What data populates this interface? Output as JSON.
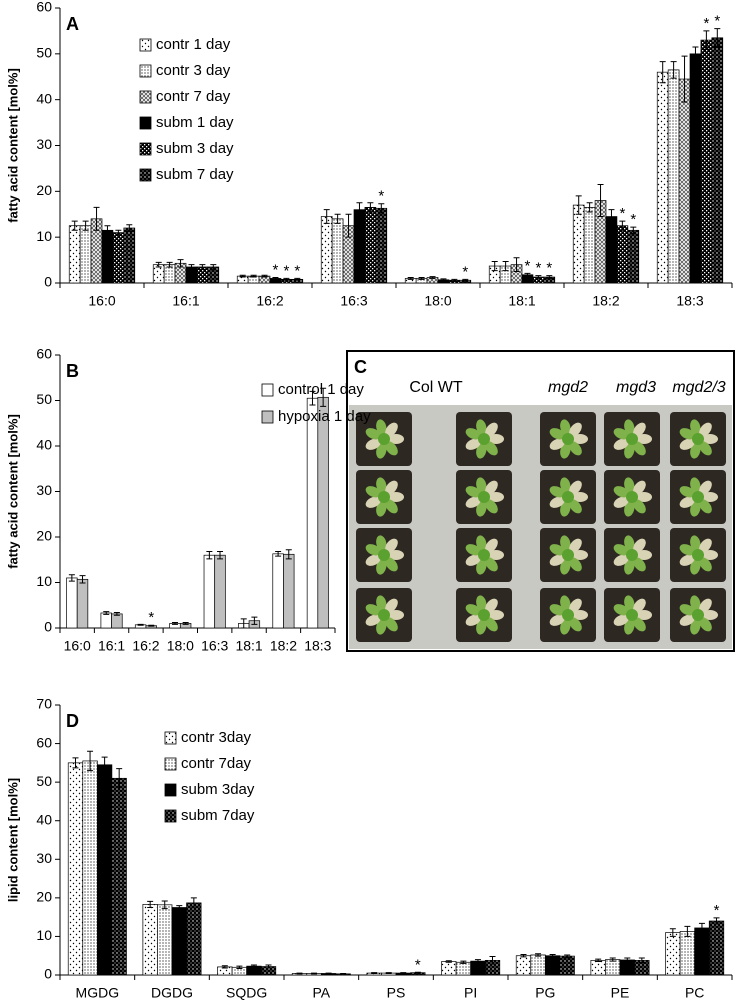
{
  "chart_data": [
    {
      "type": "bar",
      "title": "A",
      "y_label": "fatty acid content [mol%]",
      "categories": [
        "16:0",
        "16:1",
        "16:2",
        "16:3",
        "18:0",
        "18:1",
        "18:2",
        "18:3"
      ],
      "ylim": [
        0,
        60
      ],
      "yticks": [
        0,
        10,
        20,
        30,
        40,
        50,
        60
      ],
      "legend": "upper left",
      "series": [
        {
          "name": "contr 1 day",
          "color": "#ffffff",
          "values": [
            12.5,
            4,
            1.5,
            14.5,
            1,
            3.7,
            17,
            46
          ],
          "errors": [
            1,
            0.5,
            0.2,
            1.5,
            0.2,
            1,
            2,
            2.3
          ],
          "significance": [
            null,
            null,
            null,
            null,
            null,
            null,
            null,
            null
          ]
        },
        {
          "name": "contr 3 day",
          "color": "#ffffff",
          "values": [
            12.5,
            4,
            1.5,
            14,
            1,
            3.7,
            16.5,
            46.5
          ],
          "errors": [
            1,
            0.5,
            0.2,
            1,
            0.2,
            1,
            1,
            1.8
          ],
          "significance": [
            null,
            null,
            null,
            null,
            null,
            null,
            null,
            null
          ]
        },
        {
          "name": "contr 7 day",
          "color": "#ffffff",
          "values": [
            14,
            4.3,
            1.5,
            12.5,
            1.2,
            4,
            18,
            44.5
          ],
          "errors": [
            2.5,
            0.8,
            0.2,
            2.5,
            0.2,
            1.5,
            3.5,
            5
          ],
          "significance": [
            null,
            null,
            null,
            null,
            null,
            null,
            null,
            null
          ]
        },
        {
          "name": "subm 1 day",
          "color": "#000000",
          "values": [
            11.5,
            3.5,
            1,
            16,
            0.7,
            1.8,
            14.5,
            50
          ],
          "errors": [
            1,
            0.5,
            0.2,
            1.5,
            0.2,
            0.3,
            1.5,
            1.5
          ],
          "significance": [
            null,
            null,
            "*",
            null,
            null,
            "*",
            null,
            null
          ]
        },
        {
          "name": "subm 3 day",
          "color": "#000000",
          "values": [
            11,
            3.5,
            0.8,
            16.5,
            0.6,
            1.3,
            12.5,
            53
          ],
          "errors": [
            0.5,
            0.5,
            0.2,
            1,
            0.2,
            0.3,
            1,
            2
          ],
          "significance": [
            null,
            null,
            "*",
            null,
            null,
            "*",
            "*",
            "*"
          ]
        },
        {
          "name": "subm 7 day",
          "color": "#000000",
          "values": [
            12,
            3.5,
            0.8,
            16.3,
            0.6,
            1.3,
            11.5,
            53.5
          ],
          "errors": [
            0.7,
            0.5,
            0.2,
            1,
            0.2,
            0.3,
            0.7,
            2
          ],
          "significance": [
            null,
            null,
            "*",
            "*",
            "*",
            "*",
            "*",
            "*"
          ]
        }
      ]
    },
    {
      "type": "bar",
      "title": "B",
      "y_label": "fatty acid content [mol%]",
      "categories": [
        "16:0",
        "16:1",
        "16:2",
        "18:0",
        "16:3",
        "18:1",
        "18:2",
        "18:3"
      ],
      "ylim": [
        0,
        60
      ],
      "yticks": [
        0,
        10,
        20,
        30,
        40,
        50,
        60
      ],
      "legend": "upper right",
      "series": [
        {
          "name": "control 1 day",
          "color": "#ffffff",
          "values": [
            11,
            3.3,
            0.7,
            1,
            16,
            1,
            16.3,
            50.5
          ],
          "errors": [
            0.7,
            0.3,
            0.1,
            0.2,
            0.8,
            1,
            0.5,
            1.5
          ],
          "significance": [
            null,
            null,
            null,
            null,
            null,
            null,
            null,
            null
          ]
        },
        {
          "name": "hypoxia 1 day",
          "color": "#bfbfbf",
          "values": [
            10.7,
            3.1,
            0.5,
            1,
            16,
            1.6,
            16.2,
            50.7
          ],
          "errors": [
            0.8,
            0.3,
            0.1,
            0.2,
            0.8,
            0.8,
            1,
            2
          ],
          "significance": [
            null,
            null,
            "*",
            null,
            null,
            null,
            null,
            null
          ]
        }
      ]
    },
    {
      "type": "bar",
      "title": "D",
      "y_label": "lipid content [mol%]",
      "categories": [
        "MGDG",
        "DGDG",
        "SQDG",
        "PA",
        "PS",
        "PI",
        "PG",
        "PE",
        "PC"
      ],
      "ylim": [
        0,
        70
      ],
      "yticks": [
        0,
        10,
        20,
        30,
        40,
        50,
        60,
        70
      ],
      "legend": "upper left",
      "series": [
        {
          "name": "contr 3day",
          "color": "#ffffff",
          "values": [
            55,
            18.3,
            2.1,
            0.4,
            0.5,
            3.5,
            5,
            3.8,
            11
          ],
          "errors": [
            1.3,
            0.8,
            0.3,
            0.1,
            0.1,
            0.2,
            0.3,
            0.3,
            1
          ],
          "significance": [
            null,
            null,
            null,
            null,
            null,
            null,
            null,
            null,
            null
          ]
        },
        {
          "name": "contr 7day",
          "color": "#ffffff",
          "values": [
            55.5,
            18.2,
            2,
            0.4,
            0.5,
            3.3,
            5.2,
            4,
            11.3
          ],
          "errors": [
            2.5,
            1,
            0.3,
            0.1,
            0.1,
            0.3,
            0.3,
            0.4,
            1.3
          ],
          "significance": [
            null,
            null,
            null,
            null,
            null,
            null,
            null,
            null,
            null
          ]
        },
        {
          "name": "subm 3day",
          "color": "#000000",
          "values": [
            54.5,
            17.5,
            2.3,
            0.4,
            0.5,
            3.6,
            5,
            3.9,
            12.2
          ],
          "errors": [
            2,
            0.5,
            0.3,
            0.1,
            0.1,
            0.4,
            0.3,
            0.5,
            1.2
          ],
          "significance": [
            null,
            null,
            null,
            null,
            null,
            null,
            null,
            null,
            null
          ]
        },
        {
          "name": "subm 7day",
          "color": "#000000",
          "values": [
            51,
            18.7,
            2.2,
            0.3,
            0.6,
            3.8,
            4.9,
            3.8,
            14
          ],
          "errors": [
            2.5,
            1.3,
            0.4,
            0.1,
            0.1,
            1,
            0.3,
            0.6,
            0.8
          ],
          "significance": [
            null,
            null,
            null,
            null,
            "*",
            null,
            null,
            null,
            "*"
          ]
        }
      ]
    }
  ],
  "photo_panel": {
    "label": "C",
    "columns": [
      "Col WT",
      "mgd2",
      "mgd3",
      "mgd2/3"
    ]
  }
}
